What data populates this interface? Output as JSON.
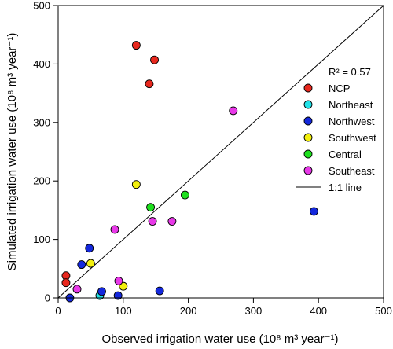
{
  "chart_data": {
    "type": "scatter",
    "xlabel": "Observed irrigation water use (10⁸ m³ year⁻¹)",
    "ylabel": "Simulated irrigation water use (10⁸ m³ year⁻¹)",
    "xlim": [
      0,
      500
    ],
    "ylim": [
      0,
      500
    ],
    "x_ticks": [
      0,
      100,
      200,
      300,
      400,
      500
    ],
    "y_ticks": [
      0,
      100,
      200,
      300,
      400,
      500
    ],
    "grid": false,
    "legend_position": "right",
    "annotation": "R² = 0.57",
    "series": [
      {
        "name": "NCP",
        "color": "#e8281e",
        "points": [
          [
            12,
            38
          ],
          [
            12,
            26
          ],
          [
            120,
            432
          ],
          [
            148,
            407
          ],
          [
            140,
            366
          ]
        ]
      },
      {
        "name": "Northeast",
        "color": "#22e2e8",
        "points": [
          [
            64,
            4
          ]
        ]
      },
      {
        "name": "Northwest",
        "color": "#1428dc",
        "points": [
          [
            18,
            0
          ],
          [
            36,
            57
          ],
          [
            48,
            85
          ],
          [
            67,
            11
          ],
          [
            92,
            4
          ],
          [
            156,
            12
          ],
          [
            393,
            148
          ]
        ]
      },
      {
        "name": "Southwest",
        "color": "#f3f00e",
        "points": [
          [
            50,
            59
          ],
          [
            100,
            20
          ],
          [
            120,
            194
          ]
        ]
      },
      {
        "name": "Central",
        "color": "#1ee01e",
        "points": [
          [
            142,
            155
          ],
          [
            195,
            176
          ]
        ]
      },
      {
        "name": "Southeast",
        "color": "#e838e8",
        "points": [
          [
            29,
            15
          ],
          [
            87,
            117
          ],
          [
            93,
            29
          ],
          [
            145,
            131
          ],
          [
            175,
            131
          ],
          [
            269,
            320
          ]
        ]
      }
    ],
    "reference_line": {
      "name": "1:1 line",
      "from": [
        0,
        0
      ],
      "to": [
        500,
        500
      ]
    }
  }
}
